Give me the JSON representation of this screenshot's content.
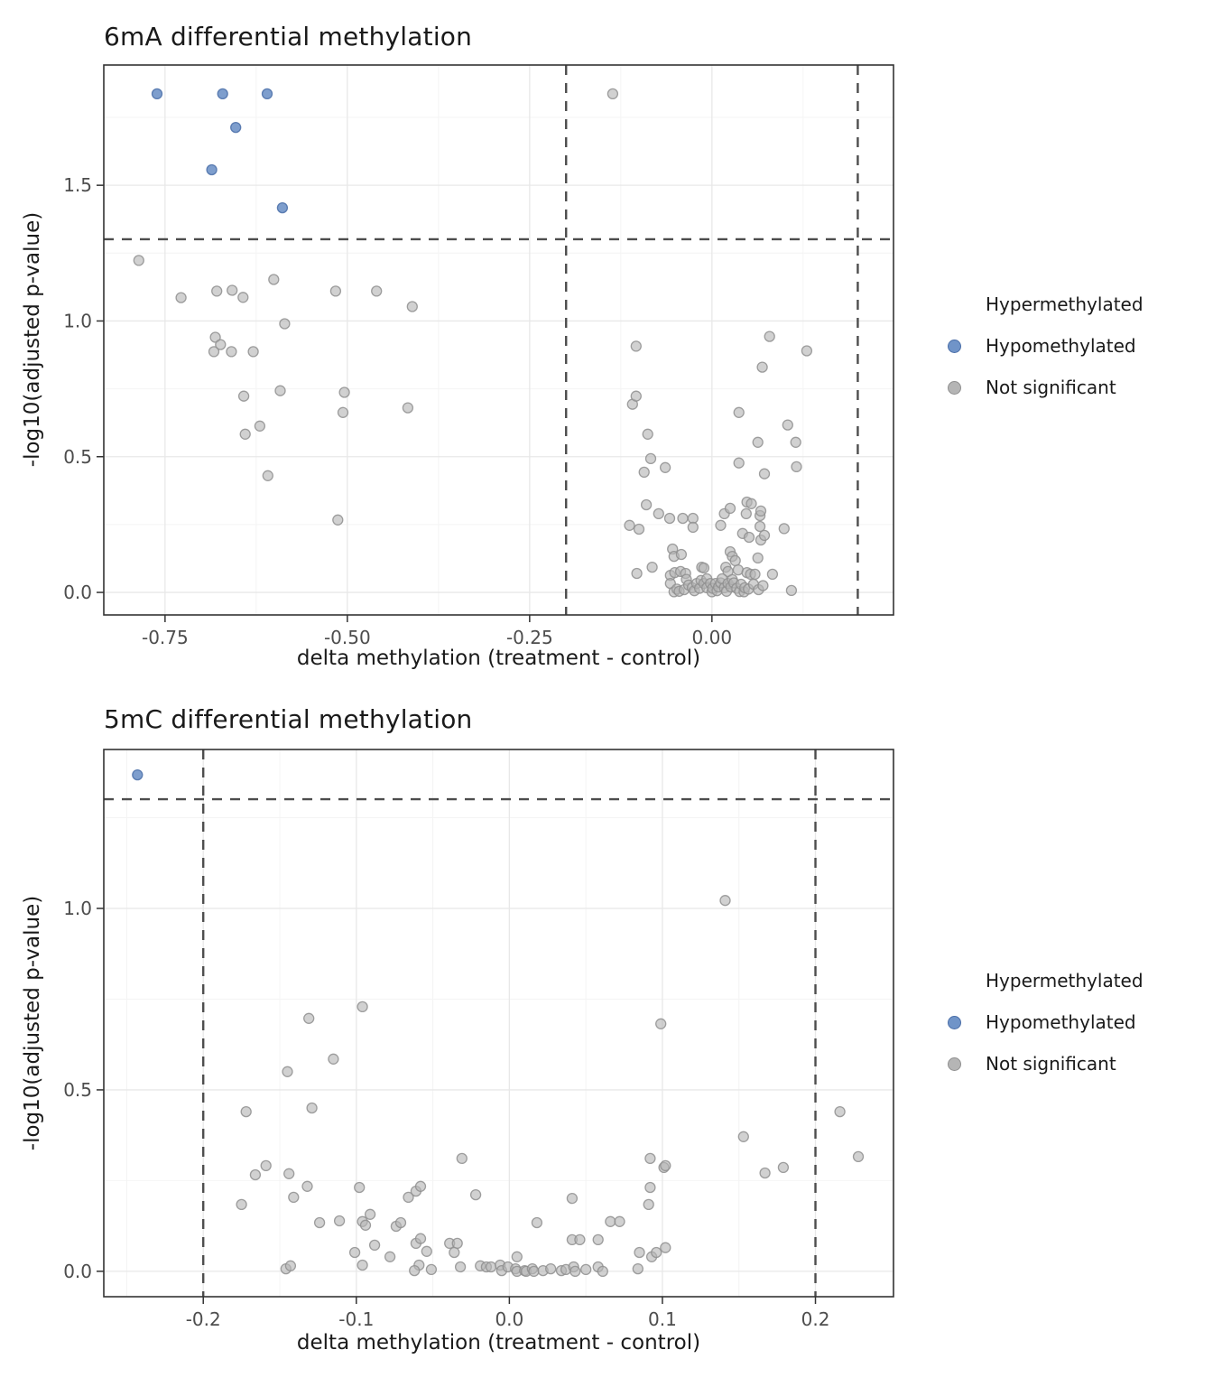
{
  "colors": {
    "hypo_fill": "#7094C8",
    "hypo_stroke": "#4A6EA8",
    "ns_fill": "#B5B5B5",
    "ns_stroke": "#8F8F8F",
    "dash_line": "#4d4d4d",
    "panel_border": "#333333",
    "grid_major": "#e8e8e8",
    "grid_minor": "#f4f4f4",
    "tick_label": "#4d4d4d"
  },
  "legend": {
    "items": [
      {
        "label": "Hypermethylated",
        "key": "none"
      },
      {
        "label": "Hypomethylated",
        "key": "hypo"
      },
      {
        "label": "Not significant",
        "key": "ns"
      }
    ]
  },
  "chart_data": [
    {
      "type": "scatter",
      "title": "6mA differential methylation",
      "xlabel": "delta methylation (treatment - control)",
      "ylabel": "-log10(adjusted p-value)",
      "xlim": [
        -0.834,
        0.249
      ],
      "ylim": [
        -0.083,
        1.943
      ],
      "xticks": [
        {
          "v": -0.75,
          "label": "-0.75"
        },
        {
          "v": -0.5,
          "label": "-0.50"
        },
        {
          "v": -0.25,
          "label": "-0.25"
        },
        {
          "v": 0.0,
          "label": "0.00"
        }
      ],
      "yticks": [
        {
          "v": 0.0,
          "label": "0.0"
        },
        {
          "v": 0.5,
          "label": "0.5"
        },
        {
          "v": 1.0,
          "label": "1.0"
        },
        {
          "v": 1.5,
          "label": "1.5"
        }
      ],
      "xminor": [
        -0.625,
        -0.375,
        -0.125,
        0.125
      ],
      "yminor": [
        0.25,
        0.75,
        1.25,
        1.75
      ],
      "hline": 1.301,
      "vlines": [
        -0.2,
        0.2
      ],
      "legend_position": "right",
      "grid": true,
      "series": [
        {
          "name": "Not significant",
          "points": [
            [
              -0.786,
              1.223
            ],
            [
              -0.728,
              1.086
            ],
            [
              -0.683,
              0.887
            ],
            [
              -0.681,
              0.94
            ],
            [
              -0.679,
              1.11
            ],
            [
              -0.674,
              0.913
            ],
            [
              -0.659,
              0.887
            ],
            [
              -0.658,
              1.113
            ],
            [
              -0.643,
              1.087
            ],
            [
              -0.642,
              0.723
            ],
            [
              -0.64,
              0.583
            ],
            [
              -0.629,
              0.887
            ],
            [
              -0.62,
              0.613
            ],
            [
              -0.609,
              0.43
            ],
            [
              -0.601,
              1.153
            ],
            [
              -0.592,
              0.743
            ],
            [
              -0.586,
              0.99
            ],
            [
              -0.516,
              1.11
            ],
            [
              -0.513,
              0.267
            ],
            [
              -0.506,
              0.663
            ],
            [
              -0.504,
              0.737
            ],
            [
              -0.46,
              1.11
            ],
            [
              -0.417,
              0.68
            ],
            [
              -0.411,
              1.053
            ],
            [
              -0.136,
              1.837
            ],
            [
              -0.109,
              0.693
            ],
            [
              -0.104,
              0.907
            ],
            [
              -0.104,
              0.723
            ],
            [
              -0.093,
              0.443
            ],
            [
              -0.088,
              0.583
            ],
            [
              -0.084,
              0.493
            ],
            [
              -0.064,
              0.46
            ],
            [
              0.037,
              0.663
            ],
            [
              0.037,
              0.477
            ],
            [
              0.063,
              0.553
            ],
            [
              0.069,
              0.83
            ],
            [
              0.072,
              0.437
            ],
            [
              0.079,
              0.943
            ],
            [
              0.104,
              0.617
            ],
            [
              0.115,
              0.553
            ],
            [
              0.116,
              0.463
            ],
            [
              0.13,
              0.89
            ],
            [
              -0.113,
              0.247
            ],
            [
              -0.1,
              0.233
            ],
            [
              -0.09,
              0.323
            ],
            [
              -0.073,
              0.29
            ],
            [
              -0.058,
              0.273
            ],
            [
              -0.054,
              0.16
            ],
            [
              -0.052,
              0.133
            ],
            [
              -0.042,
              0.14
            ],
            [
              -0.04,
              0.273
            ],
            [
              -0.026,
              0.273
            ],
            [
              -0.026,
              0.24
            ],
            [
              0.012,
              0.247
            ],
            [
              0.017,
              0.29
            ],
            [
              0.025,
              0.31
            ],
            [
              0.025,
              0.15
            ],
            [
              0.028,
              0.133
            ],
            [
              0.042,
              0.217
            ],
            [
              0.047,
              0.29
            ],
            [
              0.048,
              0.333
            ],
            [
              0.051,
              0.203
            ],
            [
              0.054,
              0.327
            ],
            [
              0.063,
              0.127
            ],
            [
              0.066,
              0.283
            ],
            [
              0.066,
              0.243
            ],
            [
              0.067,
              0.3
            ],
            [
              0.067,
              0.193
            ],
            [
              0.072,
              0.21
            ],
            [
              0.099,
              0.235
            ],
            [
              -0.103,
              0.07
            ],
            [
              -0.082,
              0.093
            ],
            [
              -0.057,
              0.063
            ],
            [
              -0.057,
              0.033
            ],
            [
              -0.051,
              0.073
            ],
            [
              -0.043,
              0.077
            ],
            [
              -0.036,
              0.07
            ],
            [
              -0.014,
              0.093
            ],
            [
              -0.011,
              0.09
            ],
            [
              0.019,
              0.093
            ],
            [
              0.022,
              0.077
            ],
            [
              0.032,
              0.117
            ],
            [
              0.036,
              0.083
            ],
            [
              0.048,
              0.073
            ],
            [
              0.053,
              0.067
            ],
            [
              0.059,
              0.067
            ],
            [
              0.083,
              0.067
            ],
            [
              0.109,
              0.007
            ],
            [
              -0.052,
              0.002
            ],
            [
              -0.048,
              0.012
            ],
            [
              -0.045,
              0.004
            ],
            [
              -0.038,
              0.01
            ],
            [
              -0.035,
              0.048
            ],
            [
              -0.032,
              0.027
            ],
            [
              -0.027,
              0.017
            ],
            [
              -0.024,
              0.006
            ],
            [
              -0.021,
              0.033
            ],
            [
              -0.017,
              0.015
            ],
            [
              -0.015,
              0.044
            ],
            [
              -0.011,
              0.033
            ],
            [
              -0.007,
              0.05
            ],
            [
              -0.007,
              0.017
            ],
            [
              -0.002,
              0.033
            ],
            [
              0.0,
              0.002
            ],
            [
              0.001,
              0.015
            ],
            [
              0.005,
              0.033
            ],
            [
              0.007,
              0.006
            ],
            [
              0.009,
              0.02
            ],
            [
              0.012,
              0.035
            ],
            [
              0.014,
              0.05
            ],
            [
              0.017,
              0.017
            ],
            [
              0.02,
              0.004
            ],
            [
              0.022,
              0.033
            ],
            [
              0.026,
              0.02
            ],
            [
              0.028,
              0.047
            ],
            [
              0.03,
              0.035
            ],
            [
              0.034,
              0.015
            ],
            [
              0.038,
              0.003
            ],
            [
              0.04,
              0.03
            ],
            [
              0.044,
              0.002
            ],
            [
              0.045,
              0.017
            ],
            [
              0.05,
              0.012
            ],
            [
              0.057,
              0.03
            ],
            [
              0.064,
              0.01
            ],
            [
              0.07,
              0.025
            ]
          ]
        },
        {
          "name": "Hypomethylated",
          "points": [
            [
              -0.761,
              1.837
            ],
            [
              -0.671,
              1.837
            ],
            [
              -0.61,
              1.837
            ],
            [
              -0.653,
              1.713
            ],
            [
              -0.686,
              1.557
            ],
            [
              -0.589,
              1.417
            ]
          ]
        }
      ]
    },
    {
      "type": "scatter",
      "title": "5mC differential methylation",
      "xlabel": "delta methylation (treatment - control)",
      "ylabel": "-log10(adjusted p-value)",
      "xlim": [
        -0.265,
        0.251
      ],
      "ylim": [
        -0.07,
        1.438
      ],
      "xticks": [
        {
          "v": -0.2,
          "label": "-0.2"
        },
        {
          "v": -0.1,
          "label": "-0.1"
        },
        {
          "v": 0.0,
          "label": "0.0"
        },
        {
          "v": 0.1,
          "label": "0.1"
        },
        {
          "v": 0.2,
          "label": "0.2"
        }
      ],
      "yticks": [
        {
          "v": 0.0,
          "label": "0.0"
        },
        {
          "v": 0.5,
          "label": "0.5"
        },
        {
          "v": 1.0,
          "label": "1.0"
        }
      ],
      "xminor": [
        -0.25,
        -0.15,
        -0.05,
        0.05,
        0.15,
        0.25
      ],
      "yminor": [
        0.25,
        0.75,
        1.25
      ],
      "hline": 1.301,
      "vlines": [
        -0.2,
        0.2
      ],
      "legend_position": "right",
      "grid": true,
      "series": [
        {
          "name": "Not significant",
          "points": [
            [
              0.141,
              1.022
            ],
            [
              -0.096,
              0.729
            ],
            [
              -0.131,
              0.697
            ],
            [
              0.099,
              0.682
            ],
            [
              -0.115,
              0.585
            ],
            [
              -0.145,
              0.55
            ],
            [
              -0.172,
              0.44
            ],
            [
              -0.129,
              0.45
            ],
            [
              0.216,
              0.44
            ],
            [
              0.153,
              0.371
            ],
            [
              0.228,
              0.316
            ],
            [
              0.179,
              0.286
            ],
            [
              0.167,
              0.271
            ],
            [
              -0.159,
              0.291
            ],
            [
              -0.166,
              0.266
            ],
            [
              -0.144,
              0.269
            ],
            [
              -0.132,
              0.234
            ],
            [
              -0.141,
              0.204
            ],
            [
              -0.175,
              0.184
            ],
            [
              -0.098,
              0.231
            ],
            [
              -0.066,
              0.204
            ],
            [
              -0.061,
              0.221
            ],
            [
              -0.058,
              0.234
            ],
            [
              0.041,
              0.201
            ],
            [
              -0.031,
              0.311
            ],
            [
              -0.022,
              0.211
            ],
            [
              0.092,
              0.311
            ],
            [
              0.101,
              0.286
            ],
            [
              0.102,
              0.291
            ],
            [
              0.092,
              0.231
            ],
            [
              0.091,
              0.184
            ],
            [
              -0.124,
              0.134
            ],
            [
              -0.111,
              0.139
            ],
            [
              -0.096,
              0.137
            ],
            [
              -0.094,
              0.127
            ],
            [
              -0.091,
              0.157
            ],
            [
              -0.074,
              0.124
            ],
            [
              -0.071,
              0.134
            ],
            [
              0.018,
              0.134
            ],
            [
              0.066,
              0.137
            ],
            [
              0.072,
              0.137
            ],
            [
              -0.088,
              0.072
            ],
            [
              -0.101,
              0.052
            ],
            [
              -0.078,
              0.04
            ],
            [
              -0.096,
              0.017
            ],
            [
              -0.061,
              0.077
            ],
            [
              -0.058,
              0.09
            ],
            [
              -0.054,
              0.055
            ],
            [
              -0.051,
              0.005
            ],
            [
              -0.059,
              0.017
            ],
            [
              -0.062,
              0.002
            ],
            [
              -0.039,
              0.077
            ],
            [
              -0.034,
              0.077
            ],
            [
              -0.036,
              0.052
            ],
            [
              0.041,
              0.087
            ],
            [
              0.046,
              0.087
            ],
            [
              0.058,
              0.087
            ],
            [
              0.102,
              0.065
            ],
            [
              0.085,
              0.052
            ],
            [
              0.093,
              0.04
            ],
            [
              0.096,
              0.052
            ],
            [
              0.005,
              0.04
            ],
            [
              0.084,
              0.007
            ],
            [
              -0.146,
              0.007
            ],
            [
              -0.143,
              0.015
            ],
            [
              -0.032,
              0.012
            ],
            [
              -0.019,
              0.015
            ],
            [
              -0.015,
              0.012
            ],
            [
              -0.012,
              0.012
            ],
            [
              -0.006,
              0.017
            ],
            [
              -0.005,
              0.002
            ],
            [
              -0.001,
              0.012
            ],
            [
              0.004,
              0.007
            ],
            [
              0.005,
              0.0
            ],
            [
              0.01,
              0.002
            ],
            [
              0.011,
              0.0
            ],
            [
              0.015,
              0.007
            ],
            [
              0.016,
              0.0
            ],
            [
              0.022,
              0.002
            ],
            [
              0.027,
              0.007
            ],
            [
              0.034,
              0.002
            ],
            [
              0.037,
              0.005
            ],
            [
              0.042,
              0.012
            ],
            [
              0.043,
              0.0
            ],
            [
              0.05,
              0.005
            ],
            [
              0.058,
              0.012
            ],
            [
              0.061,
              0.0
            ]
          ]
        },
        {
          "name": "Hypomethylated",
          "points": [
            [
              -0.243,
              1.368
            ]
          ]
        }
      ]
    }
  ]
}
